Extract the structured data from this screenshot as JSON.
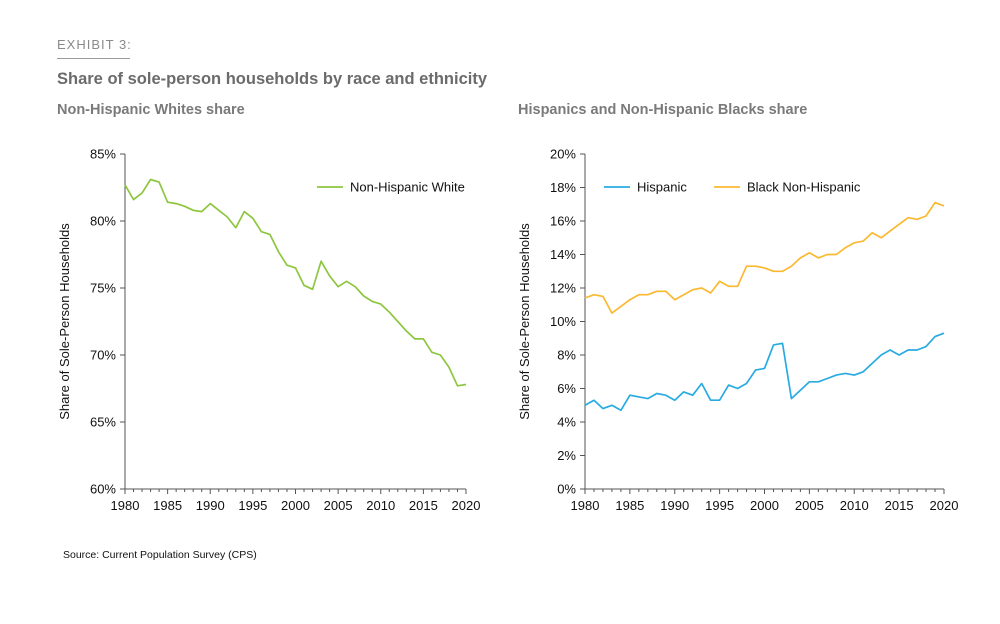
{
  "exhibit_label": "EXHIBIT 3:",
  "title": "Share of sole-person households by race and ethnicity",
  "source": "Source: Current Population Survey (CPS)",
  "colors": {
    "white": "#8dc63f",
    "hispanic": "#29abe2",
    "black": "#fbb931"
  },
  "chart_data": [
    {
      "type": "line",
      "title": "Non-Hispanic Whites share",
      "xlabel": "",
      "ylabel": "Share of Sole-Person Households",
      "xlim": [
        1980,
        2020
      ],
      "ylim": [
        60,
        85
      ],
      "x_ticks": [
        1980,
        1985,
        1990,
        1995,
        2000,
        2005,
        2010,
        2015,
        2020
      ],
      "y_ticks": [
        60,
        65,
        70,
        75,
        80,
        85
      ],
      "y_tick_labels": [
        "60%",
        "65%",
        "70%",
        "75%",
        "80%",
        "85%"
      ],
      "legend": "top-right",
      "series": [
        {
          "name": "Non-Hispanic White",
          "color": "#8dc63f",
          "x": [
            1980,
            1981,
            1982,
            1983,
            1984,
            1985,
            1986,
            1987,
            1988,
            1989,
            1990,
            1991,
            1992,
            1993,
            1994,
            1995,
            1996,
            1997,
            1998,
            1999,
            2000,
            2001,
            2002,
            2003,
            2004,
            2005,
            2006,
            2007,
            2008,
            2009,
            2010,
            2011,
            2012,
            2013,
            2014,
            2015,
            2016,
            2017,
            2018,
            2019,
            2020
          ],
          "values": [
            82.7,
            81.6,
            82.1,
            83.1,
            82.9,
            81.4,
            81.3,
            81.1,
            80.8,
            80.7,
            81.3,
            80.8,
            80.3,
            79.5,
            80.7,
            80.2,
            79.2,
            79.0,
            77.7,
            76.7,
            76.5,
            75.2,
            74.9,
            77.0,
            75.9,
            75.1,
            75.5,
            75.1,
            74.4,
            74.0,
            73.8,
            73.2,
            72.5,
            71.8,
            71.2,
            71.2,
            70.2,
            70.0,
            69.1,
            67.7,
            67.8
          ]
        }
      ]
    },
    {
      "type": "line",
      "title": "Hispanics and Non-Hispanic Blacks share",
      "xlabel": "",
      "ylabel": "Share of Sole-Person Households",
      "xlim": [
        1980,
        2020
      ],
      "ylim": [
        0,
        20
      ],
      "x_ticks": [
        1980,
        1985,
        1990,
        1995,
        2000,
        2005,
        2010,
        2015,
        2020
      ],
      "y_ticks": [
        0,
        2,
        4,
        6,
        8,
        10,
        12,
        14,
        16,
        18,
        20
      ],
      "y_tick_labels": [
        "0%",
        "2%",
        "4%",
        "6%",
        "8%",
        "10%",
        "12%",
        "14%",
        "16%",
        "18%",
        "20%"
      ],
      "legend": "top-left",
      "series": [
        {
          "name": "Hispanic",
          "color": "#29abe2",
          "x": [
            1980,
            1981,
            1982,
            1983,
            1984,
            1985,
            1986,
            1987,
            1988,
            1989,
            1990,
            1991,
            1992,
            1993,
            1994,
            1995,
            1996,
            1997,
            1998,
            1999,
            2000,
            2001,
            2002,
            2003,
            2004,
            2005,
            2006,
            2007,
            2008,
            2009,
            2010,
            2011,
            2012,
            2013,
            2014,
            2015,
            2016,
            2017,
            2018,
            2019,
            2020
          ],
          "values": [
            5.0,
            5.3,
            4.8,
            5.0,
            4.7,
            5.6,
            5.5,
            5.4,
            5.7,
            5.6,
            5.3,
            5.8,
            5.6,
            6.3,
            5.3,
            5.3,
            6.2,
            6.0,
            6.3,
            7.1,
            7.2,
            8.6,
            8.7,
            5.4,
            5.9,
            6.4,
            6.4,
            6.6,
            6.8,
            6.9,
            6.8,
            7.0,
            7.5,
            8.0,
            8.3,
            8.0,
            8.3,
            8.3,
            8.5,
            9.1,
            9.3
          ]
        },
        {
          "name": "Black Non-Hispanic",
          "color": "#fbb931",
          "x": [
            1980,
            1981,
            1982,
            1983,
            1984,
            1985,
            1986,
            1987,
            1988,
            1989,
            1990,
            1991,
            1992,
            1993,
            1994,
            1995,
            1996,
            1997,
            1998,
            1999,
            2000,
            2001,
            2002,
            2003,
            2004,
            2005,
            2006,
            2007,
            2008,
            2009,
            2010,
            2011,
            2012,
            2013,
            2014,
            2015,
            2016,
            2017,
            2018,
            2019,
            2020
          ],
          "values": [
            11.4,
            11.6,
            11.5,
            10.5,
            10.9,
            11.3,
            11.6,
            11.6,
            11.8,
            11.8,
            11.3,
            11.6,
            11.9,
            12.0,
            11.7,
            12.4,
            12.1,
            12.1,
            13.3,
            13.3,
            13.2,
            13.0,
            13.0,
            13.3,
            13.8,
            14.1,
            13.8,
            14.0,
            14.0,
            14.4,
            14.7,
            14.8,
            15.3,
            15.0,
            15.4,
            15.8,
            16.2,
            16.1,
            16.3,
            17.1,
            16.9
          ]
        }
      ]
    }
  ]
}
